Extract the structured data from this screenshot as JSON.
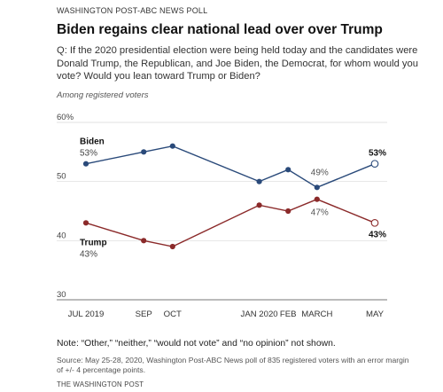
{
  "header": {
    "kicker": "WASHINGTON POST-ABC NEWS POLL",
    "title": "Biden regains clear national lead over over Trump",
    "question": "Q: If the 2020 presidential election were being held today and the candidates were Donald Trump, the Republican, and Joe Biden, the Democrat, for whom would you vote?  Would you lean toward Trump or Biden?",
    "subtitle": "Among registered voters"
  },
  "footer": {
    "note": "Note: “Other,” “neither,” “would not vote” and “no opinion” not shown.",
    "source": "Source: May 25-28, 2020, Washington Post-ABC News poll of 835 registered voters with an error margin of +/- 4 percentage points.",
    "credit": "THE WASHINGTON POST"
  },
  "chart_data": {
    "type": "line",
    "x": [
      "JUL 2019",
      "SEP",
      "OCT",
      "JAN 2020",
      "FEB",
      "MARCH",
      "MAY"
    ],
    "x_positions": [
      0,
      2,
      3,
      6,
      7,
      8,
      10
    ],
    "ylim": [
      30,
      60
    ],
    "yticks": [
      "60%",
      "50",
      "40",
      "30"
    ],
    "ytick_values": [
      60,
      50,
      40,
      30
    ],
    "grid": true,
    "colors": {
      "biden": "#2a4a7a",
      "trump": "#8b2a2a",
      "grid": "#d9d9d9",
      "axis": "#777777"
    },
    "series": [
      {
        "name": "Biden",
        "values": [
          53,
          55,
          56,
          50,
          52,
          49,
          53
        ],
        "labels": [
          {
            "index": 0,
            "name": "Biden",
            "value": "53%"
          },
          {
            "index": 5,
            "value": "49%"
          },
          {
            "index": 6,
            "value": "53%"
          }
        ]
      },
      {
        "name": "Trump",
        "values": [
          43,
          40,
          39,
          46,
          45,
          47,
          43
        ],
        "labels": [
          {
            "index": 0,
            "name": "Trump",
            "value": "43%"
          },
          {
            "index": 5,
            "value": "47%"
          },
          {
            "index": 6,
            "value": "43%"
          }
        ]
      }
    ]
  }
}
